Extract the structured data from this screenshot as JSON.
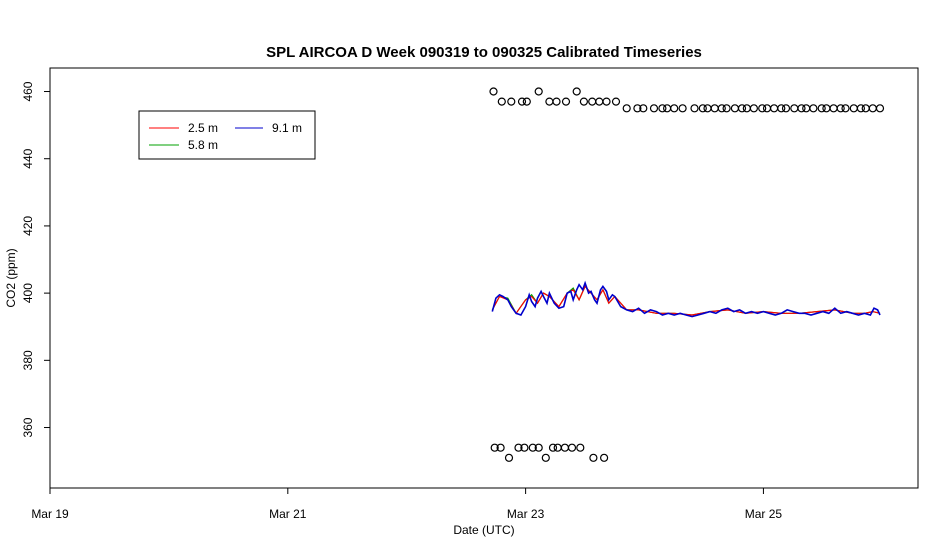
{
  "chart_data": {
    "type": "line",
    "title": "SPL AIRCOA D  Week 090319 to 090325  Calibrated Timeseries",
    "xlabel": "Date (UTC)",
    "ylabel": "CO2 (ppm)",
    "xlim": [
      19.0,
      26.3
    ],
    "ylim": [
      342,
      467
    ],
    "x_ticks": [
      {
        "value": 19,
        "label": "Mar 19"
      },
      {
        "value": 21,
        "label": "Mar 21"
      },
      {
        "value": 23,
        "label": "Mar 23"
      },
      {
        "value": 25,
        "label": "Mar 25"
      }
    ],
    "y_ticks": [
      {
        "value": 360,
        "label": "360"
      },
      {
        "value": 380,
        "label": "380"
      },
      {
        "value": 400,
        "label": "400"
      },
      {
        "value": 420,
        "label": "420"
      },
      {
        "value": 440,
        "label": "440"
      },
      {
        "value": 460,
        "label": "460"
      }
    ],
    "grid": false,
    "legend": {
      "placement": "top-left"
    },
    "series": [
      {
        "name": "2.5 m",
        "color": "#ff0000",
        "x": [
          22.72,
          22.78,
          22.85,
          22.92,
          23.0,
          23.05,
          23.1,
          23.15,
          23.2,
          23.28,
          23.35,
          23.4,
          23.45,
          23.5,
          23.55,
          23.6,
          23.65,
          23.7,
          23.75,
          23.85,
          23.95,
          24.1,
          24.25,
          24.4,
          24.55,
          24.7,
          24.85,
          25.0,
          25.15,
          25.3,
          25.45,
          25.6,
          25.75,
          25.85,
          25.92,
          25.98
        ],
        "y": [
          395,
          399,
          398,
          394,
          398,
          399,
          397,
          400,
          399,
          396,
          400,
          401,
          398,
          402,
          400,
          398,
          401,
          397,
          399,
          395,
          395,
          394,
          394,
          393.5,
          394.5,
          395,
          394,
          394.5,
          394,
          394,
          394.5,
          395,
          394,
          394,
          394.5,
          394
        ]
      },
      {
        "name": "5.8 m",
        "color": "#00a000",
        "x": [
          22.72,
          22.78,
          22.85,
          22.92,
          23.0,
          23.05,
          23.1,
          23.15,
          23.2,
          23.28,
          23.35,
          23.4,
          23.45,
          23.5,
          23.55,
          23.6,
          23.65,
          23.7,
          23.75,
          23.85,
          23.95,
          24.1,
          24.25,
          24.4,
          24.55,
          24.7,
          24.85,
          25.0,
          25.15,
          25.3,
          25.45,
          25.6,
          25.75,
          25.85,
          25.92,
          25.98
        ],
        "y": [
          395,
          399,
          398.5,
          394,
          398,
          399.5,
          397,
          400,
          399,
          396,
          400,
          401.5,
          398,
          402,
          400,
          398,
          401,
          397,
          399,
          395,
          395,
          394,
          394,
          393.5,
          394.5,
          395,
          394,
          394.5,
          394,
          394,
          394.5,
          395,
          394,
          394,
          394.5,
          394
        ]
      },
      {
        "name": "9.1 m",
        "color": "#0000cc",
        "x": [
          22.72,
          22.75,
          22.78,
          22.81,
          22.85,
          22.88,
          22.92,
          22.96,
          23.0,
          23.03,
          23.05,
          23.08,
          23.1,
          23.13,
          23.15,
          23.18,
          23.2,
          23.24,
          23.28,
          23.32,
          23.35,
          23.38,
          23.4,
          23.43,
          23.45,
          23.48,
          23.5,
          23.53,
          23.55,
          23.58,
          23.6,
          23.63,
          23.65,
          23.68,
          23.7,
          23.73,
          23.75,
          23.8,
          23.85,
          23.9,
          23.95,
          24.0,
          24.05,
          24.1,
          24.15,
          24.2,
          24.25,
          24.3,
          24.35,
          24.4,
          24.45,
          24.5,
          24.55,
          24.6,
          24.65,
          24.7,
          24.75,
          24.8,
          24.85,
          24.9,
          24.95,
          25.0,
          25.05,
          25.1,
          25.15,
          25.2,
          25.25,
          25.3,
          25.35,
          25.4,
          25.45,
          25.5,
          25.55,
          25.6,
          25.65,
          25.7,
          25.75,
          25.8,
          25.85,
          25.9,
          25.93,
          25.96,
          25.98
        ],
        "y": [
          394.5,
          398.5,
          399.5,
          399,
          398,
          396,
          394,
          393.5,
          396,
          399.5,
          397.5,
          396,
          398.5,
          400.5,
          399,
          397,
          400,
          397,
          395.5,
          396,
          400,
          400.5,
          398,
          401,
          402.5,
          401,
          403,
          400,
          400.5,
          398,
          397,
          401,
          402,
          400.5,
          398,
          399.5,
          399,
          396,
          395,
          394.5,
          395.5,
          394,
          395,
          394.5,
          393.5,
          394,
          393.5,
          394,
          393.5,
          393,
          393.5,
          394,
          394.5,
          394,
          395,
          395.5,
          394.5,
          395,
          394,
          394.5,
          394,
          394.5,
          394,
          393.5,
          394,
          395,
          394.5,
          394,
          394,
          393.5,
          394,
          394.5,
          394,
          395.5,
          394,
          394.5,
          394,
          393.5,
          394,
          393.5,
          395.5,
          395,
          393.5
        ]
      }
    ],
    "markers": {
      "shape": "open-circle",
      "color": "#000000",
      "x": [
        22.73,
        22.8,
        22.88,
        22.97,
        23.01,
        23.11,
        23.2,
        23.26,
        23.34,
        23.43,
        23.49,
        23.56,
        23.62,
        23.68,
        23.76,
        23.85,
        23.94,
        23.99,
        24.08,
        24.15,
        24.19,
        24.25,
        24.32,
        24.42,
        24.49,
        24.53,
        24.59,
        24.65,
        24.69,
        24.76,
        24.82,
        24.86,
        24.92,
        24.99,
        25.03,
        25.09,
        25.15,
        25.19,
        25.26,
        25.32,
        25.36,
        25.42,
        25.49,
        25.53,
        25.59,
        25.65,
        25.69,
        25.76,
        25.82,
        25.86,
        25.92,
        25.98,
        22.74,
        22.79,
        22.86,
        22.94,
        22.99,
        23.06,
        23.11,
        23.17,
        23.23,
        23.27,
        23.33,
        23.39,
        23.46,
        23.57,
        23.66
      ],
      "y": [
        460,
        457,
        457,
        457,
        457,
        460,
        457,
        457,
        457,
        460,
        457,
        457,
        457,
        457,
        457,
        455,
        455,
        455,
        455,
        455,
        455,
        455,
        455,
        455,
        455,
        455,
        455,
        455,
        455,
        455,
        455,
        455,
        455,
        455,
        455,
        455,
        455,
        455,
        455,
        455,
        455,
        455,
        455,
        455,
        455,
        455,
        455,
        455,
        455,
        455,
        455,
        455,
        354,
        354,
        351,
        354,
        354,
        354,
        354,
        351,
        354,
        354,
        354,
        354,
        354,
        351,
        351
      ]
    }
  }
}
